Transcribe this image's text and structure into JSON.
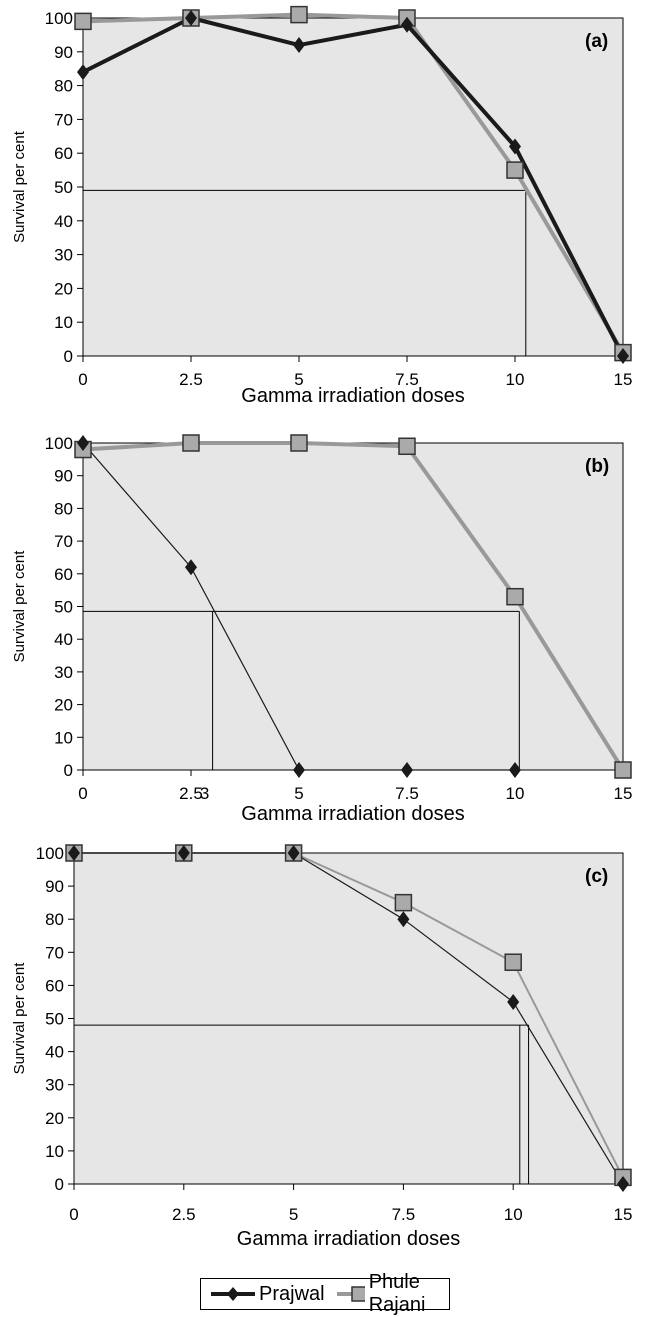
{
  "chart_data": [
    {
      "type": "line",
      "panel": "(a)",
      "categories": [
        "0",
        "2.5",
        "5",
        "7.5",
        "10",
        "15"
      ],
      "xlabel": "Gamma irradiation doses",
      "ylabel": "Survival per cent",
      "ylim": [
        0,
        100
      ],
      "yticks": [
        "0",
        "10",
        "20",
        "30",
        "40",
        "50",
        "60",
        "70",
        "80",
        "90",
        "100"
      ],
      "series": [
        {
          "name": "Prajwal",
          "values": [
            84,
            100,
            92,
            98,
            62,
            0
          ]
        },
        {
          "name": "Phule Rajani",
          "values": [
            99,
            100,
            101,
            100,
            55,
            1
          ]
        }
      ],
      "reference_line": {
        "y": 49,
        "x_intersect": 10.5
      }
    },
    {
      "type": "line",
      "panel": "(b)",
      "categories": [
        "0",
        "2.5",
        "5",
        "7.5",
        "10",
        "15"
      ],
      "xlabel": "Gamma irradiation doses",
      "ylabel": "Survival per cent",
      "ylim": [
        0,
        100
      ],
      "yticks": [
        "0",
        "10",
        "20",
        "30",
        "40",
        "50",
        "60",
        "70",
        "80",
        "90",
        "100"
      ],
      "extra_xtick": "3",
      "series": [
        {
          "name": "Prajwal",
          "values": [
            100,
            62,
            0,
            0,
            0,
            null
          ]
        },
        {
          "name": "Phule Rajani",
          "values": [
            98,
            100,
            100,
            99,
            53,
            0
          ]
        }
      ],
      "reference_line": {
        "y": 48.5,
        "x_intersects": [
          3.0,
          10.2
        ]
      }
    },
    {
      "type": "line",
      "panel": "(c)",
      "categories": [
        "0",
        "2.5",
        "5",
        "7.5",
        "10",
        "15"
      ],
      "xlabel": "Gamma irradiation doses",
      "ylabel": "Survival per cent",
      "ylim": [
        0,
        100
      ],
      "yticks": [
        "0",
        "10",
        "20",
        "30",
        "40",
        "50",
        "60",
        "70",
        "80",
        "90",
        "100"
      ],
      "series": [
        {
          "name": "Prajwal",
          "values": [
            100,
            100,
            100,
            80,
            55,
            0
          ]
        },
        {
          "name": "Phule Rajani",
          "values": [
            100,
            100,
            100,
            85,
            67,
            2
          ]
        }
      ],
      "reference_line": {
        "y": 48,
        "x_intersects": [
          10.3,
          10.7
        ]
      }
    }
  ],
  "legend": {
    "items": [
      {
        "label": "Prajwal",
        "marker": "diamond",
        "color": "#1a1a1a"
      },
      {
        "label": "Phule Rajani",
        "marker": "square",
        "color": "#999999"
      }
    ]
  },
  "colors": {
    "plot_background": "#e6e6e6",
    "prajwal": "#1a1a1a",
    "phule_rajani": "#999999",
    "marker_edge": "#333333"
  }
}
